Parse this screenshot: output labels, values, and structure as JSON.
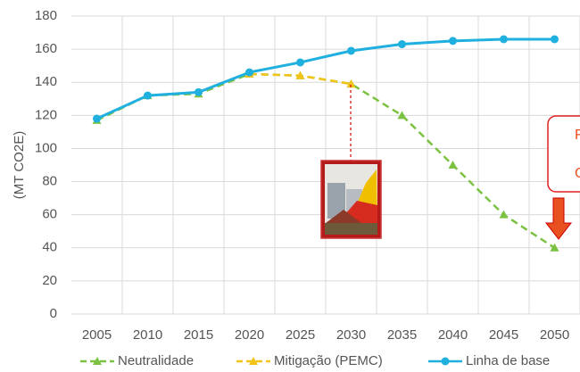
{
  "chart_data": {
    "type": "line",
    "y_label": "(MT CO2E)",
    "categories": [
      "2005",
      "2010",
      "2015",
      "2020",
      "2025",
      "2030",
      "2035",
      "2040",
      "2045",
      "2050"
    ],
    "series": [
      {
        "name": "Neutralidade",
        "color": "#7cc242",
        "dashed": true,
        "marker": "triangle",
        "values": [
          117,
          132,
          133,
          145,
          144,
          139,
          120,
          90,
          60,
          40
        ]
      },
      {
        "name": "Mitigação (PEMC)",
        "color": "#f2c318",
        "dashed": true,
        "marker": "triangle",
        "values": [
          null,
          null,
          null,
          145,
          144,
          139,
          null,
          null,
          null,
          null
        ]
      },
      {
        "name": "Linha de base",
        "color": "#1fb0e0",
        "dashed": false,
        "marker": "diamond",
        "values": [
          118,
          132,
          134,
          146,
          152,
          159,
          163,
          165,
          166,
          166
        ]
      }
    ],
    "ylim": [
      0,
      180
    ],
    "yticks": [
      0,
      20,
      40,
      60,
      80,
      100,
      120,
      140,
      160,
      180
    ],
    "grid": true,
    "annotations": [
      "F",
      "C"
    ]
  }
}
